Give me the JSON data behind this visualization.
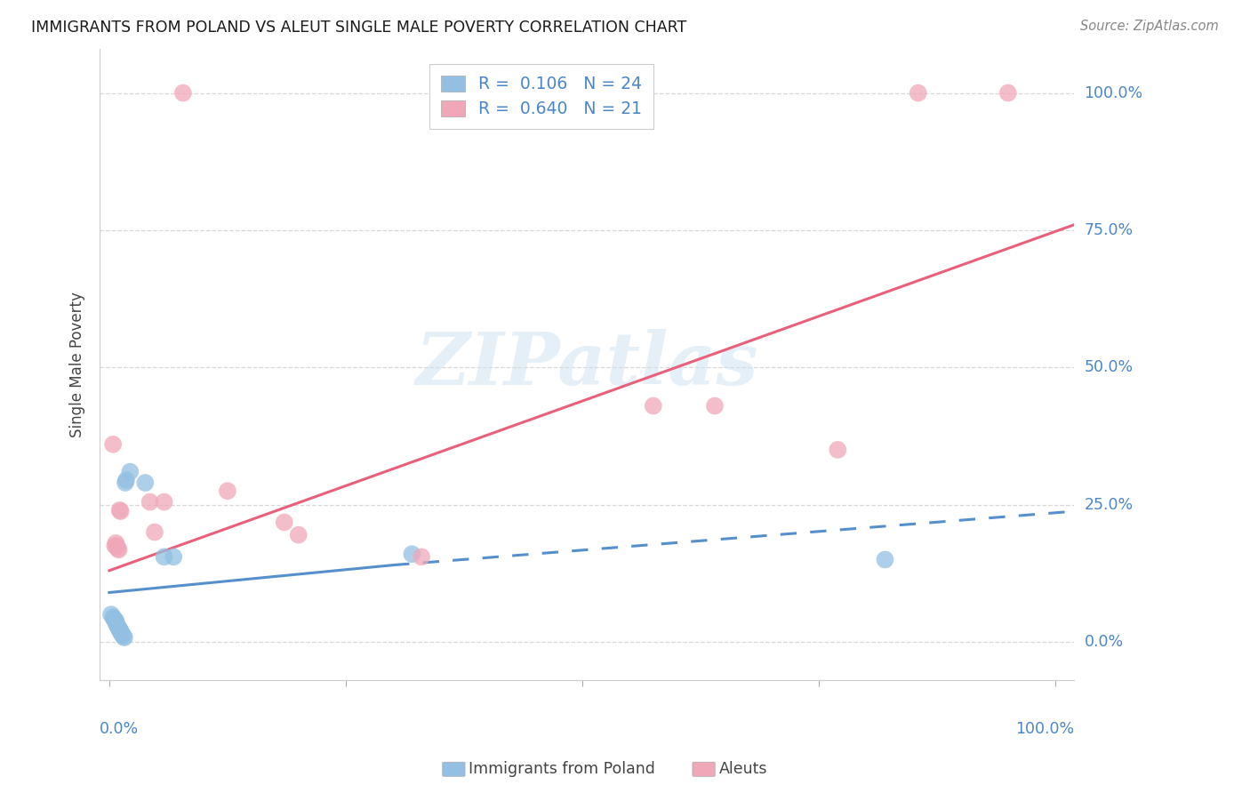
{
  "title": "IMMIGRANTS FROM POLAND VS ALEUT SINGLE MALE POVERTY CORRELATION CHART",
  "source": "Source: ZipAtlas.com",
  "ylabel": "Single Male Poverty",
  "ytick_labels": [
    "0.0%",
    "25.0%",
    "50.0%",
    "75.0%",
    "100.0%"
  ],
  "ytick_values": [
    0.0,
    0.25,
    0.5,
    0.75,
    1.0
  ],
  "xlim": [
    -0.01,
    1.02
  ],
  "ylim": [
    -0.07,
    1.08
  ],
  "legend_label1": "Immigrants from Poland",
  "legend_label2": "Aleuts",
  "R1": "0.106",
  "N1": "24",
  "R2": "0.640",
  "N2": "21",
  "watermark_text": "ZIPatlas",
  "blue_color": "#93c0e2",
  "pink_color": "#f0a8b8",
  "blue_line_color": "#5590cc",
  "pink_line_color": "#e8607a",
  "blue_scatter": [
    [
      0.002,
      0.05
    ],
    [
      0.004,
      0.045
    ],
    [
      0.005,
      0.042
    ],
    [
      0.006,
      0.04
    ],
    [
      0.007,
      0.038
    ],
    [
      0.007,
      0.035
    ],
    [
      0.008,
      0.032
    ],
    [
      0.009,
      0.028
    ],
    [
      0.01,
      0.025
    ],
    [
      0.011,
      0.022
    ],
    [
      0.012,
      0.02
    ],
    [
      0.012,
      0.018
    ],
    [
      0.013,
      0.015
    ],
    [
      0.014,
      0.013
    ],
    [
      0.015,
      0.01
    ],
    [
      0.016,
      0.008
    ],
    [
      0.017,
      0.29
    ],
    [
      0.018,
      0.295
    ],
    [
      0.022,
      0.31
    ],
    [
      0.038,
      0.29
    ],
    [
      0.058,
      0.155
    ],
    [
      0.068,
      0.155
    ],
    [
      0.32,
      0.16
    ],
    [
      0.82,
      0.15
    ]
  ],
  "pink_scatter": [
    [
      0.004,
      0.36
    ],
    [
      0.006,
      0.175
    ],
    [
      0.007,
      0.18
    ],
    [
      0.008,
      0.175
    ],
    [
      0.009,
      0.17
    ],
    [
      0.01,
      0.168
    ],
    [
      0.011,
      0.24
    ],
    [
      0.012,
      0.238
    ],
    [
      0.043,
      0.255
    ],
    [
      0.048,
      0.2
    ],
    [
      0.058,
      0.255
    ],
    [
      0.078,
      1.0
    ],
    [
      0.125,
      0.275
    ],
    [
      0.185,
      0.218
    ],
    [
      0.33,
      0.155
    ],
    [
      0.575,
      0.43
    ],
    [
      0.64,
      0.43
    ],
    [
      0.77,
      0.35
    ],
    [
      0.855,
      1.0
    ],
    [
      0.95,
      1.0
    ],
    [
      0.2,
      0.195
    ]
  ],
  "blue_solid_line": [
    0.0,
    0.3,
    0.09,
    0.14
  ],
  "blue_dashed_line": [
    0.3,
    1.02,
    0.14,
    0.238
  ],
  "pink_solid_line": [
    0.0,
    1.02,
    0.13,
    0.76
  ],
  "grid_color": "#d8d8d8",
  "spine_color": "#cccccc"
}
